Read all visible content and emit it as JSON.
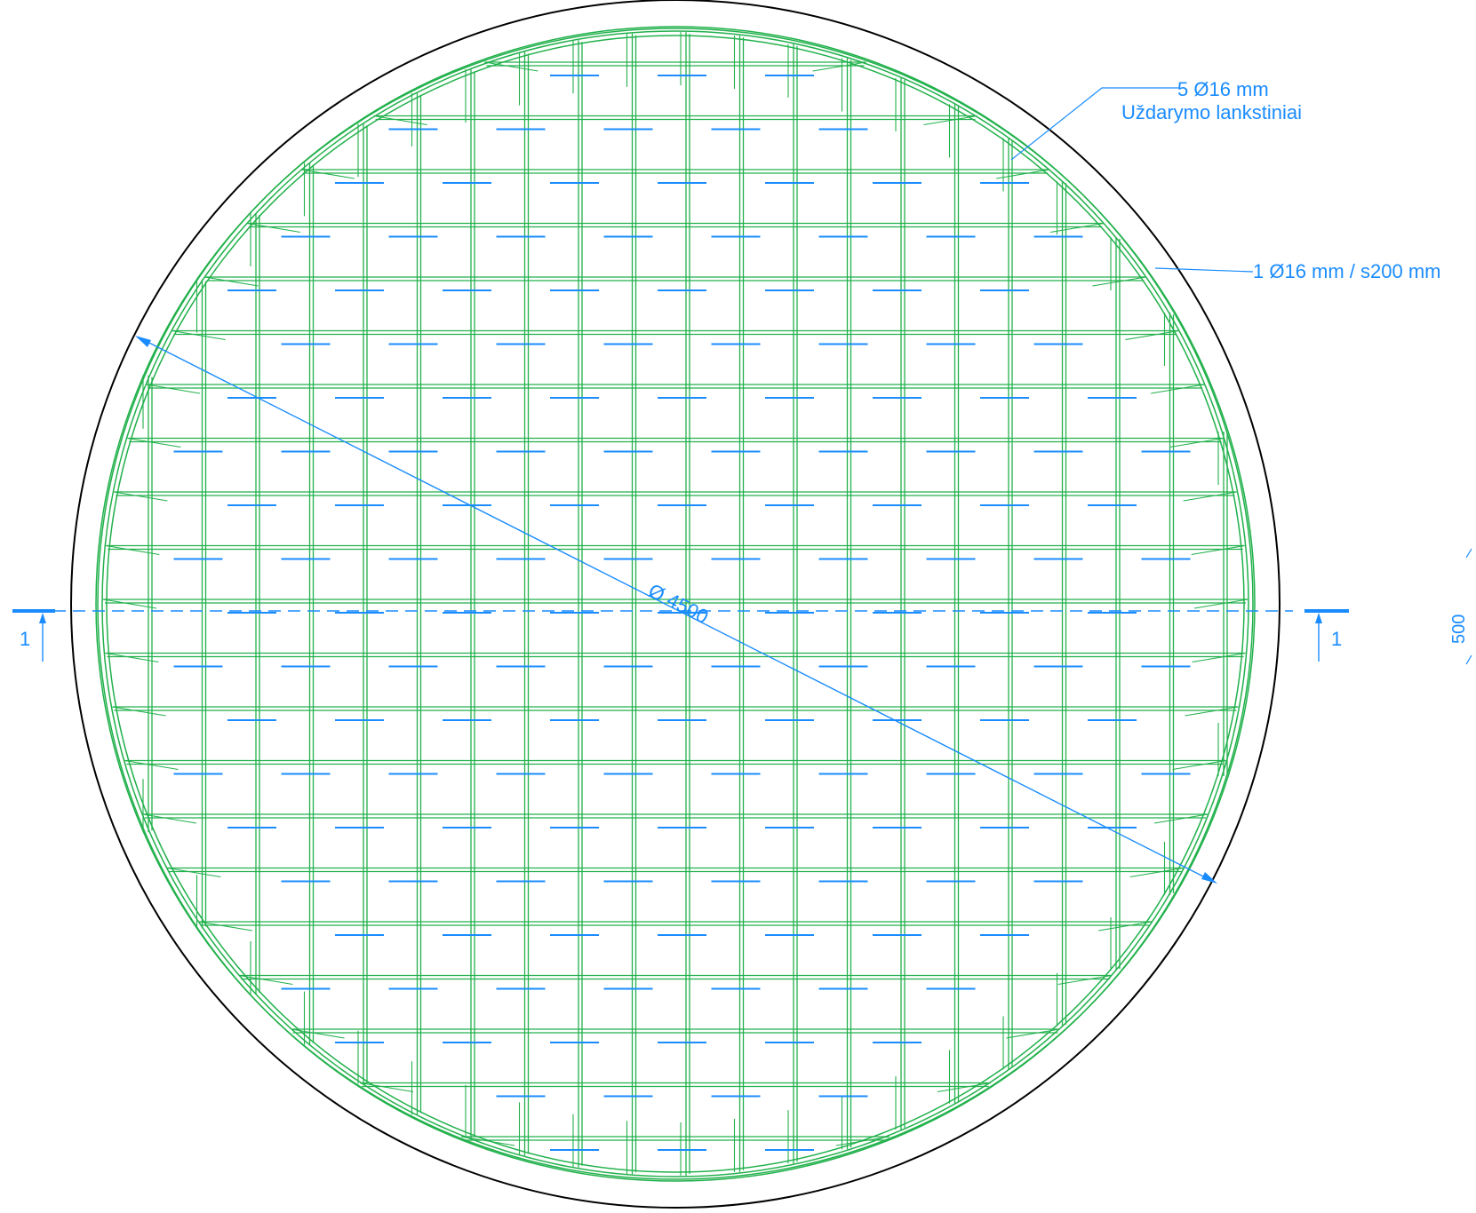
{
  "drawing": {
    "diameter_label": "Ø 4500",
    "section_mark_left": "1",
    "section_mark_right": "1",
    "callout_closing_bars": {
      "line1": "5 Ø16 mm",
      "line2": "Uždarymo lankstiniai"
    },
    "callout_mesh_bars": "1 Ø16 mm / s200 mm",
    "side_dimension": "500",
    "colors": {
      "outline": "#000000",
      "rebar": "#22b14c",
      "annotation": "#1a8cff"
    }
  }
}
